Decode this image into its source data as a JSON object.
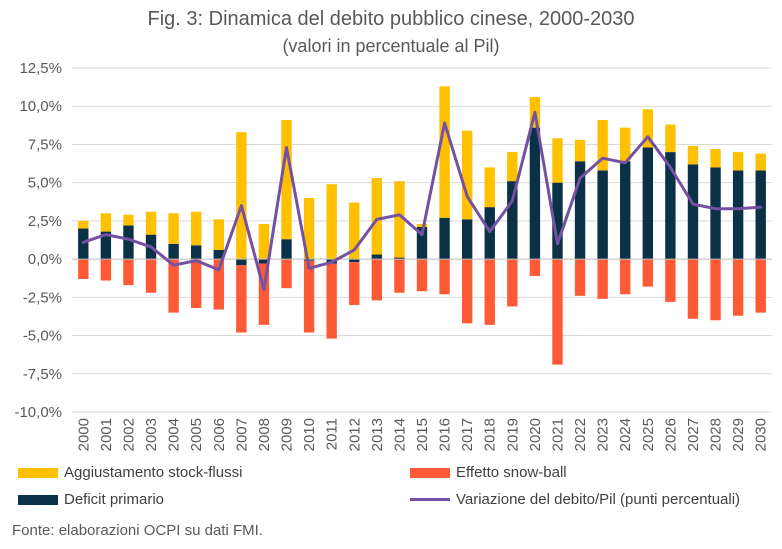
{
  "header": {
    "title": "Fig. 3: Dinamica del debito pubblico cinese, 2000-2030",
    "subtitle": "(valori in percentuale al Pil)"
  },
  "source": "Fonte: elaborazioni OCPI su dati FMI.",
  "colors": {
    "stock": "#FFC000",
    "snowball": "#FF5A36",
    "deficit": "#0B3147",
    "line": "#7451A3",
    "grid": "#D9D9D9",
    "text": "#595959"
  },
  "legend": [
    {
      "key": "stock",
      "label": "Aggiustamento stock-flussi"
    },
    {
      "key": "snowball",
      "label": "Effetto snow-ball"
    },
    {
      "key": "deficit",
      "label": "Deficit primario"
    },
    {
      "key": "line",
      "label": "Variazione del debito/Pil (punti percentuali)"
    }
  ],
  "chart_data": {
    "type": "bar",
    "stacked": true,
    "categories": [
      "2000",
      "2001",
      "2002",
      "2003",
      "2004",
      "2005",
      "2006",
      "2007",
      "2008",
      "2009",
      "2010",
      "2011",
      "2012",
      "2013",
      "2014",
      "2015",
      "2016",
      "2017",
      "2018",
      "2019",
      "2020",
      "2021",
      "2022",
      "2023",
      "2024",
      "2025",
      "2026",
      "2027",
      "2028",
      "2029",
      "2030"
    ],
    "ylim": [
      -10,
      12.5
    ],
    "yticks": [
      "-10,0%",
      "-7,5%",
      "-5,0%",
      "-2,5%",
      "0,0%",
      "2,5%",
      "5,0%",
      "7,5%",
      "10,0%",
      "12,5%"
    ],
    "ytick_values": [
      -10,
      -7.5,
      -5,
      -2.5,
      0,
      2.5,
      5,
      7.5,
      10,
      12.5
    ],
    "gridlines": true,
    "legend_position": "bottom",
    "series": [
      {
        "key": "deficit",
        "name": "Deficit primario",
        "kind": "bar",
        "values": [
          2.0,
          1.8,
          2.2,
          1.6,
          1.0,
          0.9,
          0.6,
          -0.4,
          -0.3,
          1.3,
          -0.1,
          -0.3,
          -0.2,
          0.3,
          0.1,
          2.1,
          2.7,
          2.6,
          3.4,
          5.1,
          8.6,
          5.0,
          6.4,
          5.8,
          6.4,
          7.3,
          7.0,
          6.2,
          6.0,
          5.8,
          5.8
        ]
      },
      {
        "key": "stock",
        "name": "Aggiustamento stock-flussi",
        "kind": "bar",
        "values": [
          0.5,
          1.2,
          0.7,
          1.5,
          2.0,
          2.2,
          2.0,
          8.3,
          2.3,
          7.8,
          4.0,
          4.9,
          3.7,
          5.0,
          5.0,
          0.2,
          8.6,
          5.8,
          2.6,
          1.9,
          2.0,
          2.9,
          1.4,
          3.3,
          2.2,
          2.5,
          1.8,
          1.2,
          1.2,
          1.2,
          1.1
        ]
      },
      {
        "key": "snowball",
        "name": "Effetto snow-ball",
        "kind": "bar",
        "values": [
          -1.3,
          -1.4,
          -1.7,
          -2.2,
          -3.5,
          -3.2,
          -3.3,
          -4.4,
          -4.0,
          -1.9,
          -4.7,
          -4.9,
          -2.8,
          -2.7,
          -2.2,
          -2.1,
          -2.3,
          -4.2,
          -4.3,
          -3.1,
          -1.1,
          -6.9,
          -2.4,
          -2.6,
          -2.3,
          -1.8,
          -2.8,
          -3.9,
          -4.0,
          -3.7,
          -3.5
        ]
      },
      {
        "key": "line",
        "name": "Variazione del debito/Pil (punti percentuali)",
        "kind": "line",
        "values": [
          1.1,
          1.6,
          1.3,
          0.8,
          -0.4,
          -0.1,
          -0.7,
          3.5,
          -2.0,
          7.3,
          -0.6,
          -0.2,
          0.6,
          2.6,
          2.9,
          1.6,
          8.9,
          4.1,
          1.8,
          3.8,
          9.6,
          1.0,
          5.3,
          6.6,
          6.3,
          8.0,
          6.0,
          3.6,
          3.3,
          3.3,
          3.4
        ]
      }
    ]
  }
}
